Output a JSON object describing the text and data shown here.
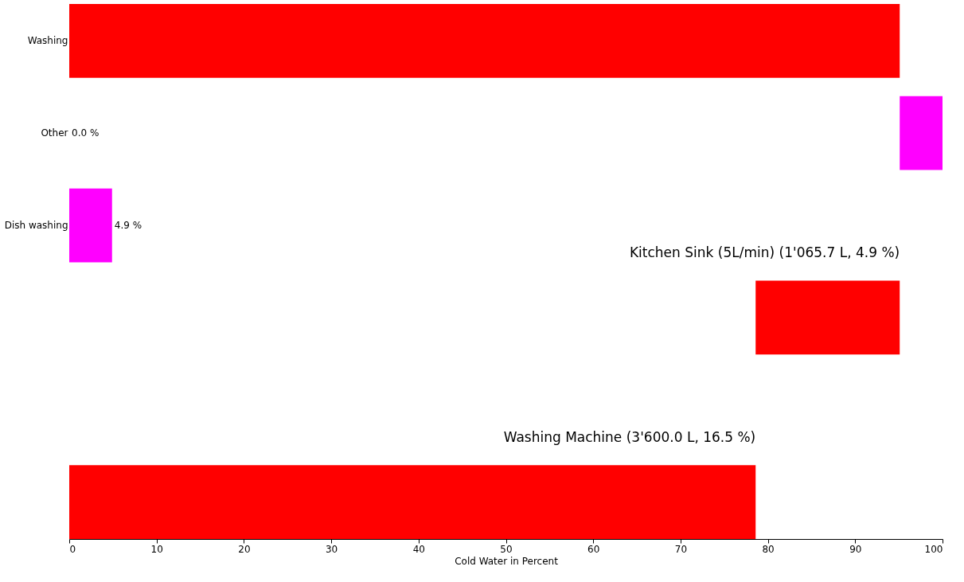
{
  "chart_data": {
    "type": "bar",
    "orientation": "horizontal",
    "xlabel": "Cold Water in Percent",
    "categories": [
      "Washing",
      "Other",
      "Dish washing",
      null,
      null,
      null
    ],
    "xlim": [
      0,
      100
    ],
    "xticks": [
      0,
      10,
      20,
      30,
      40,
      50,
      60,
      70,
      80,
      90,
      100
    ],
    "series": [
      {
        "values": [
          95.1,
          0.0,
          4.9,
          null,
          null,
          null
        ],
        "colors": [
          "#ff0000",
          "#ff0000",
          "#ff00ff",
          null,
          null,
          null
        ],
        "value_labels": [
          null,
          "0.0 %",
          "4.9 %",
          null,
          null,
          null
        ]
      },
      {
        "values": [
          null,
          4.9,
          null,
          16.5,
          null,
          78.6
        ],
        "base": [
          null,
          95.1,
          null,
          78.6,
          null,
          0
        ],
        "colors": [
          null,
          "#ff00ff",
          null,
          "#ff0000",
          null,
          "#ff0000"
        ]
      }
    ],
    "annotations": [
      "Kitchen Sink (5L/min) (1'065.7 L, 4.9 %)",
      "Washing Machine (3'600.0 L, 16.5 %)"
    ]
  }
}
